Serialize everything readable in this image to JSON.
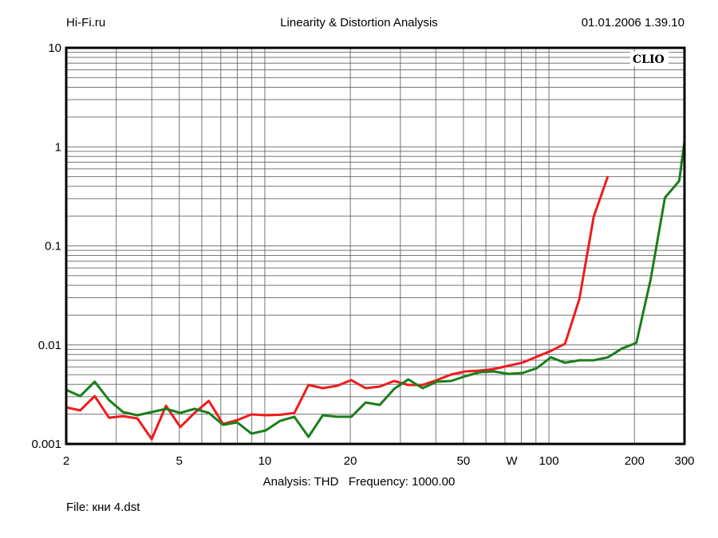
{
  "header": {
    "left": "Hi-Fi.ru",
    "title": "Linearity & Distortion Analysis",
    "datetime": "01.01.2006 1.39.10"
  },
  "footer": {
    "analysis": "Analysis: THD   Frequency: 1000.00",
    "file": "File: кни 4.dst"
  },
  "chart_data": {
    "type": "line",
    "title": "Linearity & Distortion Analysis",
    "xlabel": "",
    "ylabel": "",
    "xscale": "log",
    "yscale": "log",
    "xlim": [
      2,
      300
    ],
    "ylim": [
      0.001,
      10
    ],
    "grid": true,
    "watermark": "CLIO",
    "x_ticks": [
      {
        "value": 2,
        "label": "2"
      },
      {
        "value": 5,
        "label": "5"
      },
      {
        "value": 10,
        "label": "10"
      },
      {
        "value": 20,
        "label": "20"
      },
      {
        "value": 50,
        "label": "50"
      },
      {
        "value": 74,
        "label": "W"
      },
      {
        "value": 100,
        "label": "100"
      },
      {
        "value": 200,
        "label": "200"
      },
      {
        "value": 300,
        "label": "300"
      }
    ],
    "y_ticks": [
      {
        "value": 10,
        "label": "10"
      },
      {
        "value": 1,
        "label": "1"
      },
      {
        "value": 0.1,
        "label": "0.1"
      },
      {
        "value": 0.01,
        "label": "0.01"
      },
      {
        "value": 0.001,
        "label": "0.001"
      }
    ],
    "series": [
      {
        "name": "red",
        "color": "#ee1c1c",
        "x": [
          2,
          2.24,
          2.52,
          2.83,
          3.17,
          3.56,
          4,
          4.49,
          5.04,
          5.66,
          6.35,
          7.13,
          8,
          8.98,
          10.08,
          11.31,
          12.7,
          14.25,
          16,
          17.96,
          20.16,
          22.63,
          25.4,
          28.51,
          32,
          35.92,
          40.32,
          45.25,
          50.8,
          57.02,
          64,
          71.84,
          80.63,
          90.51,
          101.6,
          114,
          128,
          143.7,
          161.3
        ],
        "y": [
          0.00234,
          0.00218,
          0.00304,
          0.00184,
          0.00191,
          0.00181,
          0.00112,
          0.00243,
          0.00148,
          0.00206,
          0.00272,
          0.00159,
          0.00174,
          0.00199,
          0.00195,
          0.00197,
          0.00205,
          0.00394,
          0.00366,
          0.00387,
          0.00441,
          0.00366,
          0.0038,
          0.00432,
          0.00394,
          0.00394,
          0.00441,
          0.00501,
          0.0054,
          0.0055,
          0.00571,
          0.00615,
          0.00662,
          0.0076,
          0.0087,
          0.0103,
          0.0292,
          0.197,
          0.506
        ]
      },
      {
        "name": "green",
        "color": "#1a7f1a",
        "x": [
          2,
          2.24,
          2.52,
          2.83,
          3.17,
          3.56,
          4,
          4.49,
          5.04,
          5.66,
          6.35,
          7.13,
          8,
          8.98,
          10.08,
          11.31,
          12.7,
          14.25,
          16,
          17.96,
          20.16,
          22.63,
          25.4,
          28.51,
          32,
          35.92,
          40.32,
          45.25,
          50.8,
          57.02,
          64,
          71.84,
          80.63,
          90.51,
          101.6,
          114,
          128,
          143.7,
          161.3,
          181,
          203.2,
          228.1,
          256,
          287.4,
          300
        ],
        "y": [
          0.00352,
          0.00304,
          0.00425,
          0.00277,
          0.0021,
          0.00195,
          0.0021,
          0.00226,
          0.00206,
          0.00226,
          0.00206,
          0.00156,
          0.00165,
          0.00127,
          0.00137,
          0.00171,
          0.00188,
          0.00118,
          0.00195,
          0.00188,
          0.00188,
          0.00262,
          0.00248,
          0.00359,
          0.00449,
          0.00366,
          0.00425,
          0.00432,
          0.00483,
          0.0053,
          0.0054,
          0.0051,
          0.0052,
          0.0058,
          0.0075,
          0.0066,
          0.007,
          0.007,
          0.0075,
          0.0092,
          0.0105,
          0.046,
          0.307,
          0.453,
          1.14
        ]
      }
    ]
  }
}
